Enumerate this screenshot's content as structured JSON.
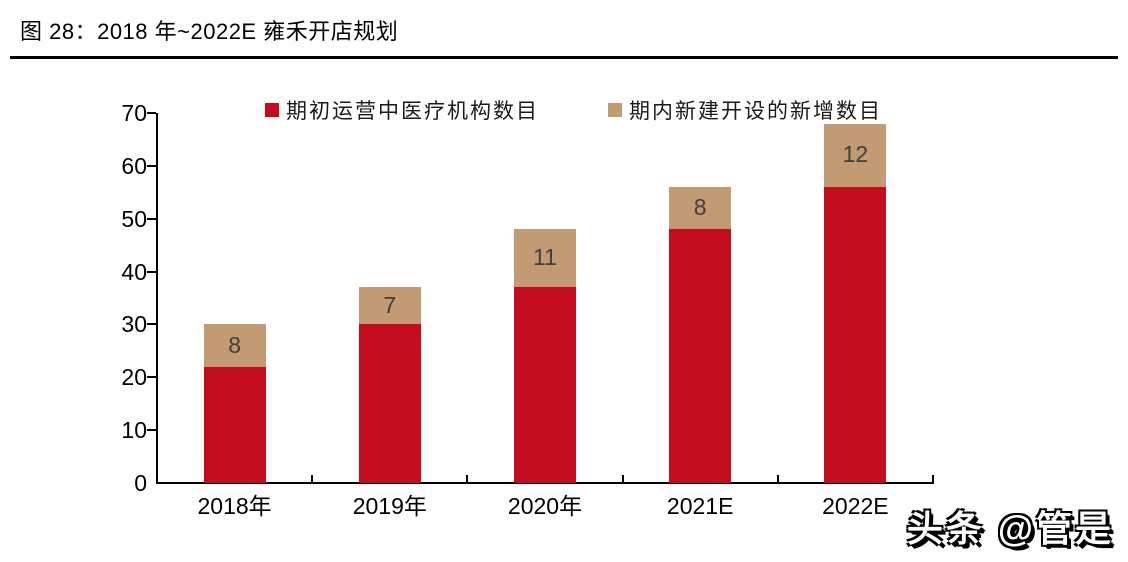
{
  "figure": {
    "title": "图 28：2018 年~2022E 雍禾开店规划",
    "watermark": "头条 @管是"
  },
  "chart_data": {
    "type": "bar",
    "stacked": true,
    "title": "图 28：2018 年~2022E 雍禾开店规划",
    "categories": [
      "2018年",
      "2019年",
      "2020年",
      "2021E",
      "2022E"
    ],
    "series": [
      {
        "name": "期初运营中医疗机构数目",
        "color": "#C30D1E",
        "values": [
          22,
          30,
          37,
          48,
          56
        ],
        "labels_shown": false
      },
      {
        "name": "期内新建开设的新增数目",
        "color": "#C39B73",
        "values": [
          8,
          7,
          11,
          8,
          12
        ],
        "labels_shown": true
      }
    ],
    "ylim": [
      0,
      70
    ],
    "yticks": [
      0,
      10,
      20,
      30,
      40,
      50,
      60,
      70
    ],
    "xlabel": "",
    "ylabel": "",
    "grid": false,
    "legend_position": "top"
  }
}
